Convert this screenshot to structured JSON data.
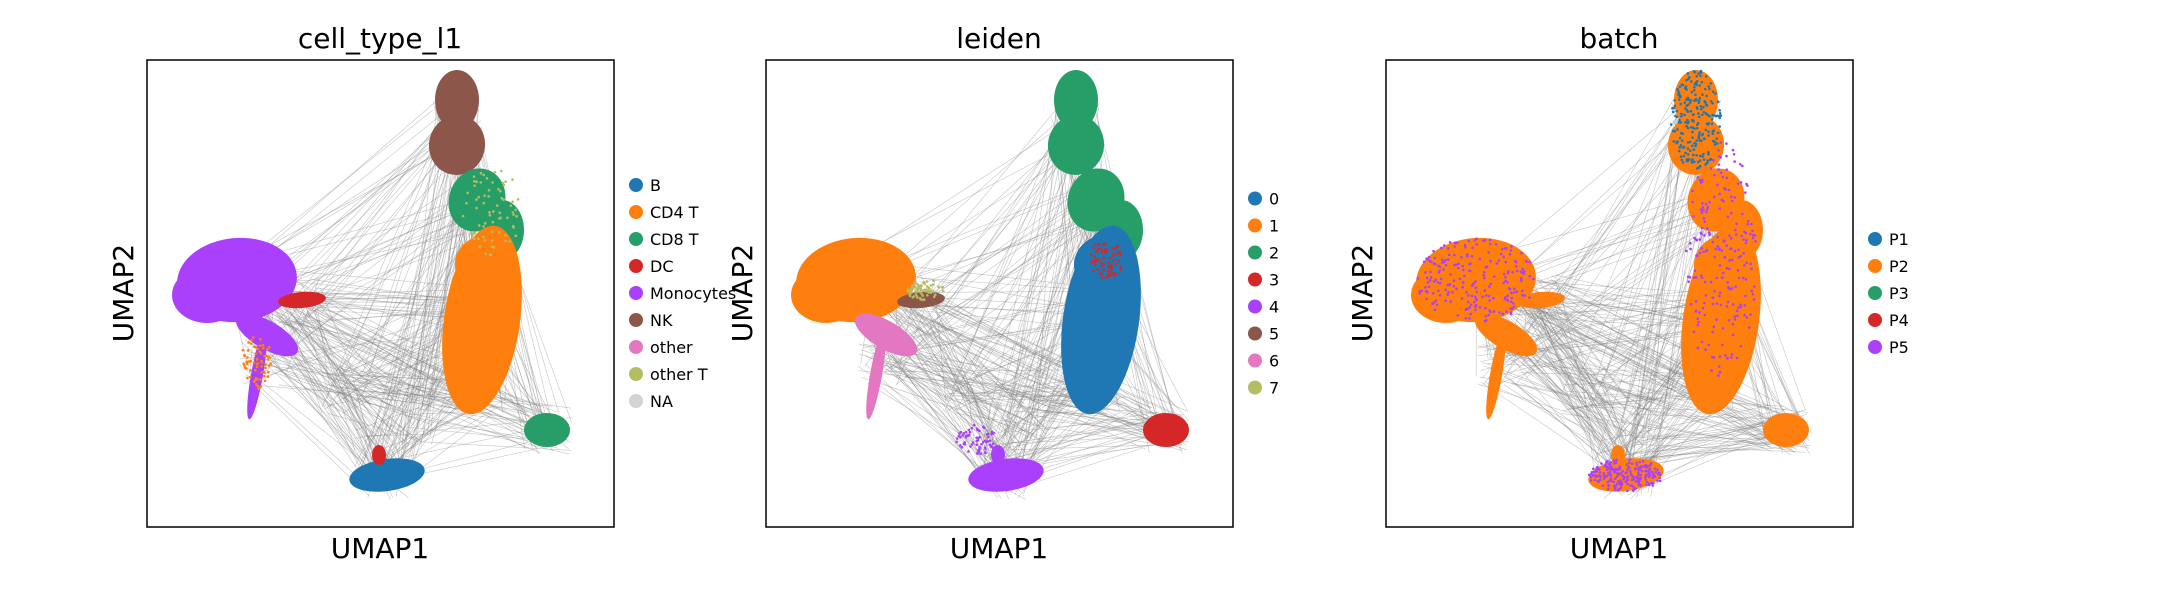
{
  "chart_data": [
    {
      "type": "scatter",
      "title": "cell_type_l1",
      "xlabel": "UMAP1",
      "ylabel": "UMAP2",
      "grid": false,
      "legend_placement": "right",
      "ticks_shown": false,
      "background_edges": "gray PAGA connectivity lines",
      "series": [
        {
          "name": "B",
          "color": "#1f77b4"
        },
        {
          "name": "CD4 T",
          "color": "#ff7f0e"
        },
        {
          "name": "CD8 T",
          "color": "#279e68"
        },
        {
          "name": "DC",
          "color": "#d62728"
        },
        {
          "name": "Monocytes",
          "color": "#aa40fc"
        },
        {
          "name": "NK",
          "color": "#8c564b"
        },
        {
          "name": "other",
          "color": "#e377c2"
        },
        {
          "name": "other T",
          "color": "#b5bd61"
        },
        {
          "name": "NA",
          "color": "#d3d3d3"
        }
      ]
    },
    {
      "type": "scatter",
      "title": "leiden",
      "xlabel": "UMAP1",
      "ylabel": "UMAP2",
      "grid": false,
      "legend_placement": "right",
      "ticks_shown": false,
      "background_edges": "gray PAGA connectivity lines",
      "series": [
        {
          "name": "0",
          "color": "#1f77b4"
        },
        {
          "name": "1",
          "color": "#ff7f0e"
        },
        {
          "name": "2",
          "color": "#279e68"
        },
        {
          "name": "3",
          "color": "#d62728"
        },
        {
          "name": "4",
          "color": "#aa40fc"
        },
        {
          "name": "5",
          "color": "#8c564b"
        },
        {
          "name": "6",
          "color": "#e377c2"
        },
        {
          "name": "7",
          "color": "#b5bd61"
        }
      ]
    },
    {
      "type": "scatter",
      "title": "batch",
      "xlabel": "UMAP1",
      "ylabel": "UMAP2",
      "grid": false,
      "legend_placement": "right",
      "ticks_shown": false,
      "background_edges": "gray PAGA connectivity lines",
      "series": [
        {
          "name": "P1",
          "color": "#1f77b4"
        },
        {
          "name": "P2",
          "color": "#ff7f0e"
        },
        {
          "name": "P3",
          "color": "#279e68"
        },
        {
          "name": "P4",
          "color": "#d62728"
        },
        {
          "name": "P5",
          "color": "#aa40fc"
        }
      ]
    }
  ],
  "colors": {
    "edge": "#808080",
    "frame": "#000000",
    "background": "#ffffff"
  }
}
